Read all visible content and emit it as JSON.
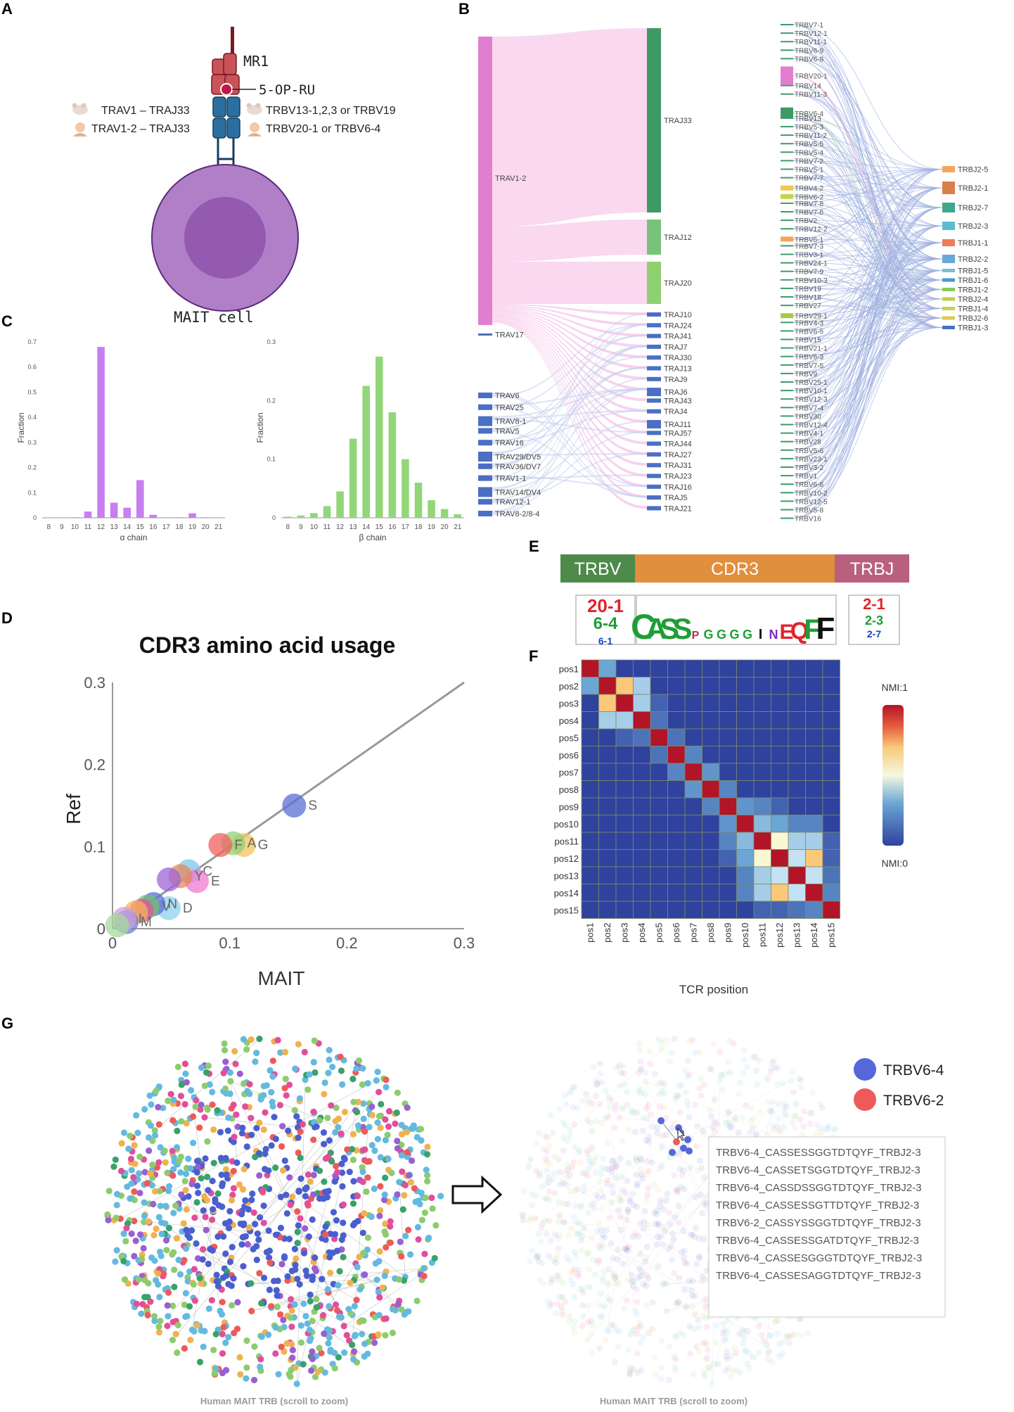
{
  "panel_labels": [
    "A",
    "B",
    "C",
    "D",
    "E",
    "F",
    "G"
  ],
  "panelA": {
    "mr1": "MR1",
    "antigen": "5-OP-RU",
    "mouse_alpha": "TRAV1 – TRAJ33",
    "human_alpha": "TRAV1-2 – TRAJ33",
    "mouse_beta": "TRBV13-1,2,3 or TRBV19",
    "human_beta": "TRBV20-1 or TRBV6-4",
    "cell": "MAIT cell",
    "colors": {
      "mr1": "#c8545a",
      "tcr": "#2a6fa0",
      "cell_outer": "#b07fc8",
      "cell_inner": "#9459b0"
    }
  },
  "panelB": {
    "trav": [
      "TRAV1-2",
      "TRAV17",
      "TRAV6",
      "TRAV25",
      "TRAV8-1",
      "TRAV5",
      "TRAV16",
      "TRAV29/DV5",
      "TRAV36/DV7",
      "TRAV1-1",
      "TRAV14/DV4",
      "TRAV12-1",
      "TRAV8-2/8-4"
    ],
    "traj": [
      "TRAJ33",
      "TRAJ12",
      "TRAJ20",
      "TRAJ10",
      "TRAJ24",
      "TRAJ41",
      "TRAJ7",
      "TRAJ30",
      "TRAJ13",
      "TRAJ9",
      "TRAJ6",
      "TRAJ43",
      "TRAJ4",
      "TRAJ11",
      "TRAJ57",
      "TRAJ44",
      "TRAJ27",
      "TRAJ31",
      "TRAJ23",
      "TRAJ16",
      "TRAJ5",
      "TRAJ21"
    ],
    "trbv": [
      "TRBV7-1",
      "TRBV12-1",
      "TRBV11-1",
      "TRBV6-9",
      "TRBV6-8",
      "TRBV20-1",
      "TRBV14",
      "TRBV11-3",
      "TRBV6-4",
      "TRBV13",
      "TRBV5-3",
      "TRBV11-2",
      "TRBV5-5",
      "TRBV5-4",
      "TRBV7-2",
      "TRBV5-1",
      "TRBV7-7",
      "TRBV4-2",
      "TRBV6-2",
      "TRBV7-8",
      "TRBV7-6",
      "TRBV2",
      "TRBV12-2",
      "TRBV6-1",
      "TRBV7-3",
      "TRBV3-1",
      "TRBV24-1",
      "TRBV7-9",
      "TRBV10-3",
      "TRBV19",
      "TRBV18",
      "TRBV27",
      "TRBV29-1",
      "TRBV4-3",
      "TRBV6-5",
      "TRBV15",
      "TRBV21-1",
      "TRBV6-3",
      "TRBV7-5",
      "TRBV9",
      "TRBV25-1",
      "TRBV10-1",
      "TRBV12-3",
      "TRBV7-4",
      "TRBV30",
      "TRBV12-4",
      "TRBV4-1",
      "TRBV28",
      "TRBV5-6",
      "TRBV23-1",
      "TRBV3-2",
      "TRBV1",
      "TRBV6-6",
      "TRBV10-2",
      "TRBV12-5",
      "TRBV5-8",
      "TRBV16"
    ],
    "trbj": [
      "TRBJ2-5",
      "TRBJ2-1",
      "TRBJ2-7",
      "TRBJ2-3",
      "TRBJ1-1",
      "TRBJ2-2",
      "TRBJ1-5",
      "TRBJ1-6",
      "TRBJ1-2",
      "TRBJ2-4",
      "TRBJ1-4",
      "TRBJ2-6",
      "TRBJ1-3"
    ]
  },
  "panelE": {
    "segments": [
      "TRBV",
      "CDR3",
      "TRBJ"
    ],
    "segment_colors": [
      "#4e8a4a",
      "#e08f3e",
      "#b8607e"
    ],
    "v_logo": [
      "20-1",
      "6-4",
      "6-1"
    ],
    "cdr3_logo": [
      "C",
      "A",
      "S",
      "S",
      "P",
      "G",
      "G",
      "G",
      "G",
      "I",
      "N",
      "E",
      "Q",
      "F",
      "F"
    ],
    "j_logo": [
      "2-1",
      "2-3",
      "2-7"
    ]
  },
  "chart_data": [
    {
      "type": "bar",
      "title": "",
      "xlabel": "α chain",
      "ylabel": "Fraction",
      "categories": [
        "8",
        "9",
        "10",
        "11",
        "12",
        "13",
        "14",
        "15",
        "16",
        "17",
        "18",
        "19",
        "20",
        "21"
      ],
      "values": [
        0,
        0,
        0.002,
        0.025,
        0.68,
        0.06,
        0.04,
        0.15,
        0.012,
        0.002,
        0.002,
        0.018,
        0.002,
        0
      ],
      "ylim": [
        0,
        0.7
      ],
      "yticks": [
        "0",
        "0.1",
        "0.2",
        "0.3",
        "0.4",
        "0.5",
        "0.6",
        "0.7"
      ],
      "color": "#c77ef0"
    },
    {
      "type": "bar",
      "title": "",
      "xlabel": "β chain",
      "ylabel": "Fraction",
      "categories": [
        "8",
        "9",
        "10",
        "11",
        "12",
        "13",
        "14",
        "15",
        "16",
        "17",
        "18",
        "19",
        "20",
        "21"
      ],
      "values": [
        0.002,
        0.004,
        0.008,
        0.02,
        0.045,
        0.135,
        0.225,
        0.275,
        0.18,
        0.1,
        0.06,
        0.03,
        0.015,
        0.006
      ],
      "ylim": [
        0,
        0.3
      ],
      "yticks": [
        "0",
        "0.1",
        "0.2",
        "0.3"
      ],
      "color": "#93d67a"
    },
    {
      "type": "scatter",
      "title": "CDR3 amino acid usage",
      "xlabel": "MAIT",
      "ylabel": "Ref",
      "xlim": [
        0,
        0.3
      ],
      "ylim": [
        0,
        0.3
      ],
      "ticks": [
        "0",
        "0.1",
        "0.2",
        "0.3"
      ],
      "points": [
        {
          "label": "S",
          "x": 0.155,
          "y": 0.15,
          "color": "#5b6fd6"
        },
        {
          "label": "G",
          "x": 0.112,
          "y": 0.102,
          "color": "#f5c45c"
        },
        {
          "label": "A",
          "x": 0.103,
          "y": 0.104,
          "color": "#8fd17a"
        },
        {
          "label": "F",
          "x": 0.092,
          "y": 0.102,
          "color": "#f06060"
        },
        {
          "label": "C",
          "x": 0.065,
          "y": 0.07,
          "color": "#7fc8e8"
        },
        {
          "label": "E",
          "x": 0.072,
          "y": 0.058,
          "color": "#f07ad0"
        },
        {
          "label": "Y",
          "x": 0.058,
          "y": 0.064,
          "color": "#e68a5a"
        },
        {
          "label": "",
          "x": 0.048,
          "y": 0.06,
          "color": "#9f64d8"
        },
        {
          "label": "D",
          "x": 0.048,
          "y": 0.025,
          "color": "#8fd0ee"
        },
        {
          "label": "N",
          "x": 0.035,
          "y": 0.03,
          "color": "#5b6fd6"
        },
        {
          "label": "V",
          "x": 0.03,
          "y": 0.027,
          "color": "#6fbf6f"
        },
        {
          "label": "",
          "x": 0.025,
          "y": 0.022,
          "color": "#e0559b"
        },
        {
          "label": "",
          "x": 0.02,
          "y": 0.02,
          "color": "#f5b05c"
        },
        {
          "label": "M",
          "x": 0.012,
          "y": 0.008,
          "color": "#6a7fd6"
        },
        {
          "label": "I",
          "x": 0.01,
          "y": 0.012,
          "color": "#c8a0e0"
        },
        {
          "label": "",
          "x": 0.004,
          "y": 0.004,
          "color": "#a6d99a"
        }
      ]
    },
    {
      "type": "heatmap",
      "title": "",
      "xlabel": "TCR position",
      "ylabel": "",
      "rows": [
        "pos1",
        "pos2",
        "pos3",
        "pos4",
        "pos5",
        "pos6",
        "pos7",
        "pos8",
        "pos9",
        "pos10",
        "pos11",
        "pos12",
        "pos13",
        "pos14",
        "pos15"
      ],
      "cols": [
        "pos1",
        "pos2",
        "pos3",
        "pos4",
        "pos5",
        "pos6",
        "pos7",
        "pos8",
        "pos9",
        "pos10",
        "pos11",
        "pos12",
        "pos13",
        "pos14",
        "pos15"
      ],
      "legend_max": "NMI:1",
      "legend_min": "NMI:0",
      "values": [
        [
          1,
          0.3,
          0,
          0,
          0,
          0,
          0,
          0,
          0,
          0,
          0,
          0,
          0,
          0,
          0
        ],
        [
          0.3,
          1,
          0.7,
          0.4,
          0,
          0,
          0,
          0,
          0,
          0,
          0,
          0,
          0,
          0,
          0
        ],
        [
          0,
          0.7,
          1,
          0.4,
          0.1,
          0,
          0,
          0,
          0,
          0,
          0,
          0,
          0,
          0,
          0
        ],
        [
          0,
          0.4,
          0.4,
          1,
          0.15,
          0,
          0,
          0,
          0,
          0,
          0,
          0,
          0,
          0,
          0
        ],
        [
          0,
          0,
          0.1,
          0.15,
          1,
          0.15,
          0,
          0,
          0,
          0,
          0,
          0,
          0,
          0,
          0
        ],
        [
          0,
          0,
          0,
          0,
          0.15,
          1,
          0.2,
          0,
          0,
          0,
          0,
          0,
          0,
          0,
          0
        ],
        [
          0,
          0,
          0,
          0,
          0,
          0.2,
          1,
          0.25,
          0,
          0,
          0,
          0,
          0,
          0,
          0
        ],
        [
          0,
          0,
          0,
          0,
          0,
          0,
          0.25,
          1,
          0.2,
          0,
          0,
          0,
          0,
          0,
          0
        ],
        [
          0,
          0,
          0,
          0,
          0,
          0,
          0,
          0.2,
          1,
          0.25,
          0.2,
          0.1,
          0,
          0,
          0
        ],
        [
          0,
          0,
          0,
          0,
          0,
          0,
          0,
          0,
          0.25,
          1,
          0.35,
          0.3,
          0.2,
          0.2,
          0
        ],
        [
          0,
          0,
          0,
          0,
          0,
          0,
          0,
          0,
          0.2,
          0.35,
          1,
          0.55,
          0.4,
          0.4,
          0.1
        ],
        [
          0,
          0,
          0,
          0,
          0,
          0,
          0,
          0,
          0.1,
          0.3,
          0.55,
          1,
          0.45,
          0.7,
          0.1
        ],
        [
          0,
          0,
          0,
          0,
          0,
          0,
          0,
          0,
          0,
          0.2,
          0.4,
          0.45,
          1,
          0.45,
          0.15
        ],
        [
          0,
          0,
          0,
          0,
          0,
          0,
          0,
          0,
          0,
          0.2,
          0.4,
          0.7,
          0.45,
          1,
          0.2
        ],
        [
          0,
          0,
          0,
          0,
          0,
          0,
          0,
          0,
          0,
          0,
          0.1,
          0.1,
          0.15,
          0.2,
          1
        ]
      ]
    }
  ],
  "panelG": {
    "caption_left": "Human MAIT TRB (scroll to zoom)",
    "caption_right": "Human MAIT TRB (scroll to zoom)",
    "legend": [
      {
        "label": "TRBV6-4",
        "color": "#5468d8"
      },
      {
        "label": "TRBV6-2",
        "color": "#ee5a5a"
      }
    ],
    "tooltip": [
      "TRBV6-4_CASSESSGGTDTQYF_TRBJ2-3",
      "TRBV6-4_CASSETSGGTDTQYF_TRBJ2-3",
      "TRBV6-4_CASSDSSGGTDTQYF_TRBJ2-3",
      "TRBV6-4_CASSESSGTTDTQYF_TRBJ2-3",
      "TRBV6-2_CASSYSSGGTDTQYF_TRBJ2-3",
      "TRBV6-4_CASSESSGATDTQYF_TRBJ2-3",
      "TRBV6-4_CASSESGGGTDTQYF_TRBJ2-3",
      "TRBV6-4_CASSESAGGTDTQYF_TRBJ2-3"
    ],
    "node_colors": [
      "#4a5fcf",
      "#64b9e0",
      "#8ccc6e",
      "#f0b24f",
      "#e14f9b",
      "#ee5a5a",
      "#9a5fd1",
      "#38a26a"
    ]
  }
}
